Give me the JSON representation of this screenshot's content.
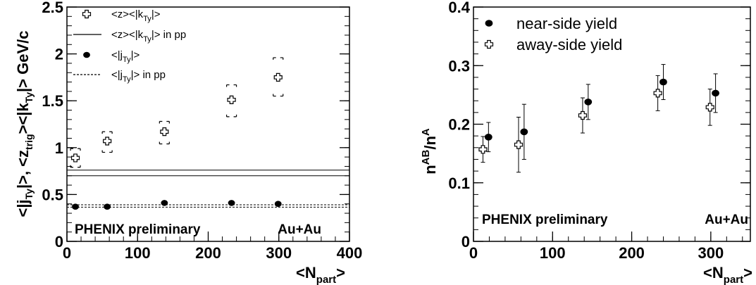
{
  "chart_data": [
    {
      "type": "scatter",
      "xlim": [
        0,
        400
      ],
      "ylim": [
        0,
        2.5
      ],
      "xticks": [
        "0",
        "100",
        "200",
        "300",
        "400"
      ],
      "yticks": [
        "0",
        "0.5",
        "1",
        "1.5",
        "2",
        "2.5"
      ],
      "xlabel": {
        "pre": "<N",
        "sub": "part",
        "post": ">"
      },
      "ylabel": {
        "a": "<|j",
        "a_sub": "Ty",
        "b": "|>,  <z",
        "b_sub": "trig",
        "c": "><|k",
        "c_sub": "Ty",
        "d": "|>  GeV/c"
      },
      "annotations": [
        "PHENIX preliminary",
        "Au+Au"
      ],
      "legend": [
        {
          "marker": "open-cross",
          "text": "<z><|k",
          "sub": "Ty",
          "post": "|>"
        },
        {
          "marker": "solid-line",
          "text": "<z><|k",
          "sub": "Ty",
          "post": "|> in pp"
        },
        {
          "marker": "filled-circle",
          "text": "<|j",
          "sub": "Ty",
          "post": "|>"
        },
        {
          "marker": "dashed-line",
          "text": "<|j",
          "sub": "Ty",
          "post": "|> in pp"
        }
      ],
      "series": [
        {
          "marker": "open-cross",
          "x": [
            12,
            57,
            138,
            233,
            299
          ],
          "y": [
            0.89,
            1.07,
            1.17,
            1.51,
            1.75
          ],
          "syst_low": [
            0.79,
            0.95,
            1.04,
            1.33,
            1.55
          ],
          "syst_high": [
            0.99,
            1.17,
            1.28,
            1.67,
            1.96
          ]
        },
        {
          "marker": "filled-circle",
          "x": [
            12,
            57,
            138,
            233,
            299
          ],
          "y": [
            0.37,
            0.37,
            0.41,
            0.41,
            0.4
          ]
        }
      ],
      "pp_bands": {
        "kt_lines": [
          0.7,
          0.76
        ],
        "jt_lines": [
          0.365,
          0.39
        ]
      }
    },
    {
      "type": "scatter",
      "xlim": [
        0,
        350
      ],
      "ylim": [
        0,
        0.4
      ],
      "xticks": [
        "0",
        "100",
        "200",
        "300"
      ],
      "yticks": [
        "0",
        "0.1",
        "0.2",
        "0.3",
        "0.4"
      ],
      "xlabel": {
        "pre": "<N",
        "sub": "part",
        "post": ">"
      },
      "ylabel": {
        "pre": "n",
        "sup1": "AB",
        "mid": "/n",
        "sup2": "A"
      },
      "annotations": [
        "PHENIX preliminary",
        "Au+Au"
      ],
      "legend": [
        {
          "marker": "filled-circle",
          "text": "near-side yield"
        },
        {
          "marker": "open-cross",
          "text": "away-side yield"
        }
      ],
      "series": [
        {
          "name": "near-side yield",
          "marker": "filled-circle",
          "x": [
            19,
            64,
            145,
            240,
            306
          ],
          "y": [
            0.178,
            0.187,
            0.238,
            0.272,
            0.253
          ],
          "err": [
            0.025,
            0.047,
            0.03,
            0.03,
            0.033
          ]
        },
        {
          "name": "away-side yield",
          "marker": "open-cross",
          "x": [
            12,
            57,
            138,
            233,
            299
          ],
          "y": [
            0.157,
            0.165,
            0.215,
            0.253,
            0.229
          ],
          "err": [
            0.022,
            0.047,
            0.03,
            0.03,
            0.031
          ]
        }
      ]
    }
  ]
}
